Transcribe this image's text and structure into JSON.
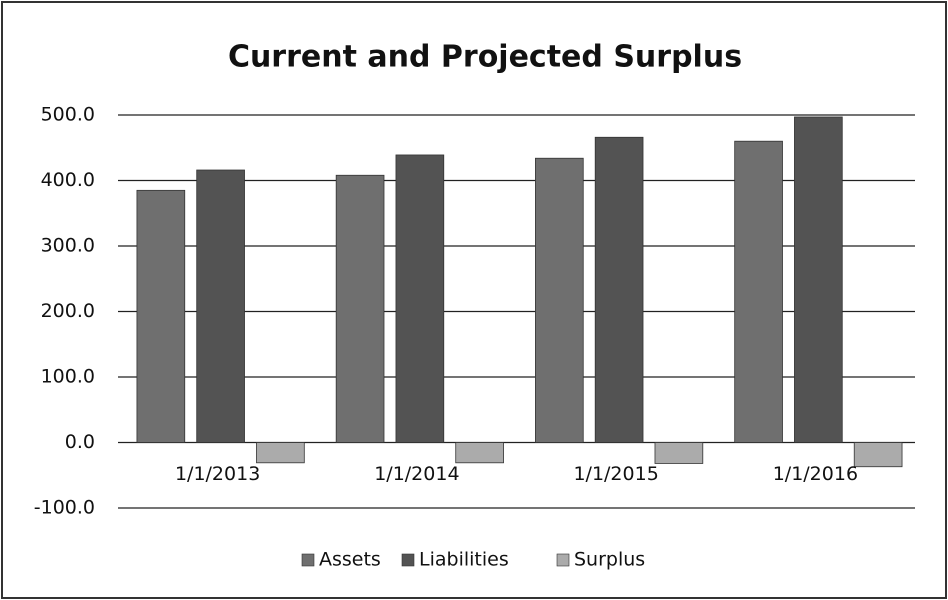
{
  "chart_data": {
    "type": "bar",
    "title": "Current and Projected Surplus",
    "categories": [
      "1/1/2013",
      "1/1/2014",
      "1/1/2015",
      "1/1/2016"
    ],
    "series": [
      {
        "name": "Assets",
        "color": "#6f6f6f",
        "values": [
          385,
          408,
          434,
          460
        ]
      },
      {
        "name": "Liabilities",
        "color": "#535353",
        "values": [
          416,
          439,
          466,
          497
        ]
      },
      {
        "name": "Surplus",
        "color": "#ababab",
        "values": [
          -31,
          -31,
          -32,
          -37
        ]
      }
    ],
    "ylim": [
      -100,
      500
    ],
    "yticks": [
      {
        "value": -100,
        "label": "-100.0"
      },
      {
        "value": 0,
        "label": "0.0"
      },
      {
        "value": 100,
        "label": "100.0"
      },
      {
        "value": 200,
        "label": "200.0"
      },
      {
        "value": 300,
        "label": "300.0"
      },
      {
        "value": 400,
        "label": "400.0"
      },
      {
        "value": 500,
        "label": "500.0"
      }
    ],
    "grid": true,
    "legend": "bottom"
  }
}
